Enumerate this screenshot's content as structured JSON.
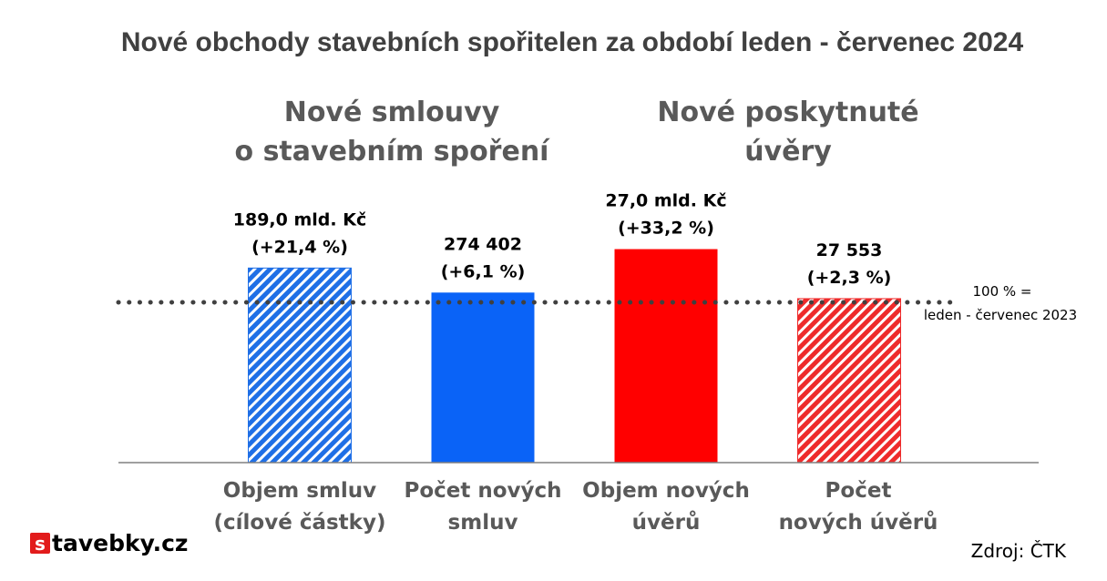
{
  "chart_data": {
    "type": "bar",
    "title": "Nové obchody stavebních spořitelen za období leden - červenec 2024",
    "group_labels": [
      {
        "lines": [
          "Nové smlouvy",
          "o stavebním spoření"
        ]
      },
      {
        "lines": [
          "Nové poskytnuté",
          "úvěry"
        ]
      }
    ],
    "categories": [
      [
        "Objem smluv",
        "(cílové částky)"
      ],
      [
        "Počet  nových",
        "smluv"
      ],
      [
        "Objem nových",
        "úvěrů"
      ],
      [
        "Počet",
        "nových úvěrů"
      ]
    ],
    "values": [
      121.4,
      106.1,
      133.2,
      102.3
    ],
    "value_unit": "% of leden - červenec 2023",
    "data_labels": [
      [
        "189,0 mld. Kč",
        "(+21,4 %)"
      ],
      [
        "274 402",
        "(+6,1 %)"
      ],
      [
        "27,0 mld. Kč",
        "(+33,2 %)"
      ],
      [
        "27 553",
        "(+2,3 %)"
      ]
    ],
    "bar_styles": [
      {
        "color": "#1f6fe6",
        "hatched": true
      },
      {
        "color": "#0a63f7",
        "hatched": false
      },
      {
        "color": "#ff0000",
        "hatched": false
      },
      {
        "color": "#ee2b2b",
        "hatched": true
      }
    ],
    "reference_line": {
      "value": 100,
      "label": [
        "100 % =",
        "leden - červenec 2023"
      ],
      "style": "dotted",
      "color": "#404040"
    },
    "ylim": [
      0,
      140
    ],
    "grid": false,
    "legend": "none",
    "xlabel": "",
    "ylabel": ""
  },
  "source": "Zdroj: ČTK",
  "logo": {
    "badge": "s",
    "text": "tavebky.cz",
    "badge_color": "#e21b1b"
  }
}
